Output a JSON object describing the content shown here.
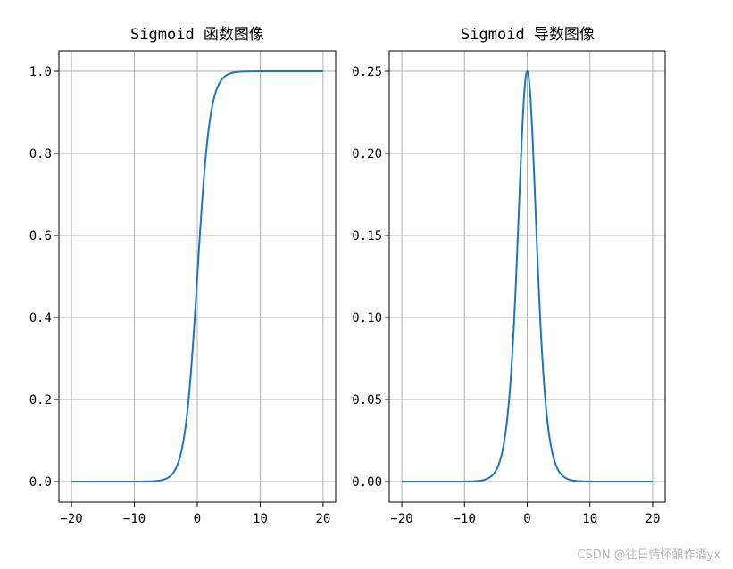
{
  "watermark": "CSDN @往日情怀酿作酒yx",
  "colors": {
    "line": "#1f77b4",
    "grid": "#b0b0b0",
    "frame": "#000000"
  },
  "chart_data": [
    {
      "type": "line",
      "title": "Sigmoid 函数图像",
      "function": "sigmoid",
      "x": [
        -20,
        -10,
        -6,
        -5,
        -4,
        -3,
        -2,
        -1,
        0,
        1,
        2,
        3,
        4,
        5,
        6,
        10,
        20
      ],
      "y": [
        0.0,
        5e-05,
        0.0025,
        0.0067,
        0.018,
        0.047,
        0.119,
        0.269,
        0.5,
        0.731,
        0.881,
        0.953,
        0.982,
        0.9933,
        0.9975,
        0.99995,
        1.0
      ],
      "xlim": [
        -22,
        22
      ],
      "ylim": [
        -0.05,
        1.05
      ],
      "xticks": [
        -20,
        -10,
        0,
        10,
        20
      ],
      "xticklabels": [
        "−20",
        "−10",
        "0",
        "10",
        "20"
      ],
      "yticks": [
        0.0,
        0.2,
        0.4,
        0.6,
        0.8,
        1.0
      ],
      "yticklabels": [
        "0.0",
        "0.2",
        "0.4",
        "0.6",
        "0.8",
        "1.0"
      ],
      "grid": true
    },
    {
      "type": "line",
      "title": "Sigmoid 导数图像",
      "function": "sigmoid_derivative",
      "x": [
        -20,
        -10,
        -6,
        -5,
        -4,
        -3,
        -2,
        -1,
        0,
        1,
        2,
        3,
        4,
        5,
        6,
        10,
        20
      ],
      "y": [
        0.0,
        5e-05,
        0.0025,
        0.0066,
        0.0177,
        0.0452,
        0.105,
        0.1966,
        0.25,
        0.1966,
        0.105,
        0.0452,
        0.0177,
        0.0066,
        0.0025,
        5e-05,
        0.0
      ],
      "xlim": [
        -22,
        22
      ],
      "ylim": [
        -0.0125,
        0.2625
      ],
      "xticks": [
        -20,
        -10,
        0,
        10,
        20
      ],
      "xticklabels": [
        "−20",
        "−10",
        "0",
        "10",
        "20"
      ],
      "yticks": [
        0.0,
        0.05,
        0.1,
        0.15,
        0.2,
        0.25
      ],
      "yticklabels": [
        "0.00",
        "0.05",
        "0.10",
        "0.15",
        "0.20",
        "0.25"
      ],
      "grid": true
    }
  ]
}
